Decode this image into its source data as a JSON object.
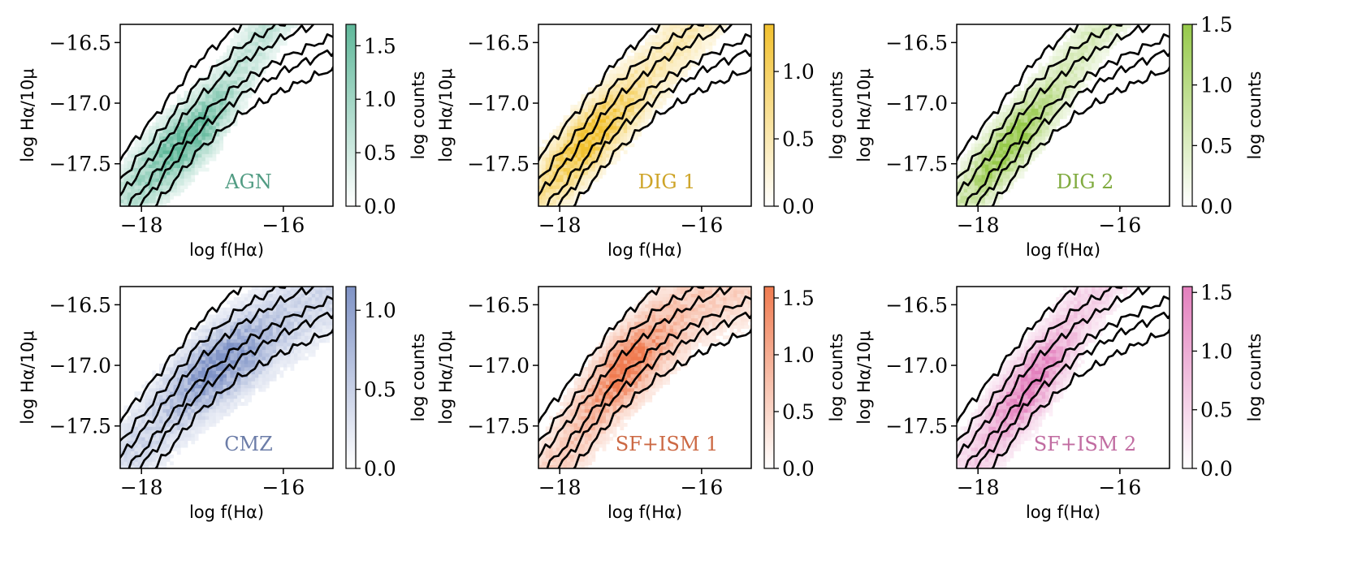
{
  "figure": {
    "xlabel": "log f(Hα)",
    "ylabel": "log Hα/10μ",
    "cbar_label": "log counts",
    "x_ticks": [
      -18,
      -16
    ],
    "y_ticks": [
      -16.5,
      -17.0,
      -17.5
    ],
    "xlim": [
      -18.3,
      -15.3
    ],
    "ylim": [
      -17.85,
      -16.35
    ]
  },
  "chart_data": [
    {
      "type": "heatmap",
      "label": "AGN",
      "color": "#5fb89a",
      "cbar_ticks": [
        0.0,
        0.5,
        1.0,
        1.5
      ],
      "cbar_max": 1.7,
      "xlabel": "log f(Hα)",
      "ylabel": "log Hα/10μ",
      "colorbar_label": "log counts",
      "xlim": [
        -18.3,
        -15.3
      ],
      "ylim": [
        -17.85,
        -16.35
      ],
      "ridge": [
        [
          -18.1,
          -17.75
        ],
        [
          -17.6,
          -17.45
        ],
        [
          -17.0,
          -17.05
        ],
        [
          -16.6,
          -16.7
        ],
        [
          -16.3,
          -16.45
        ]
      ],
      "width": 0.22,
      "peak": [
        -17.4,
        -17.3
      ]
    },
    {
      "type": "heatmap",
      "label": "DIG 1",
      "color": "#f2c12e",
      "cbar_ticks": [
        0.0,
        0.5,
        1.0
      ],
      "cbar_max": 1.35,
      "xlabel": "log f(Hα)",
      "ylabel": "log Hα/10μ",
      "colorbar_label": "log counts",
      "xlim": [
        -18.3,
        -15.3
      ],
      "ylim": [
        -17.85,
        -16.35
      ],
      "ridge": [
        [
          -18.3,
          -17.8
        ],
        [
          -17.8,
          -17.45
        ],
        [
          -17.3,
          -17.1
        ],
        [
          -16.8,
          -16.8
        ],
        [
          -16.4,
          -16.55
        ]
      ],
      "width": 0.22,
      "peak": [
        -17.55,
        -17.3
      ]
    },
    {
      "type": "heatmap",
      "label": "DIG 2",
      "color": "#96c94a",
      "cbar_ticks": [
        0.0,
        0.5,
        1.0,
        1.5
      ],
      "cbar_max": 1.5,
      "xlabel": "log f(Hα)",
      "ylabel": "log Hα/10μ",
      "colorbar_label": "log counts",
      "xlim": [
        -18.3,
        -15.3
      ],
      "ylim": [
        -17.85,
        -16.35
      ],
      "ridge": [
        [
          -18.1,
          -17.75
        ],
        [
          -17.7,
          -17.45
        ],
        [
          -17.3,
          -17.15
        ],
        [
          -16.9,
          -16.85
        ]
      ],
      "width": 0.2,
      "peak": [
        -17.5,
        -17.35
      ]
    },
    {
      "type": "heatmap",
      "label": "CMZ",
      "color": "#7f93c6",
      "cbar_ticks": [
        0.0,
        0.5,
        1.0
      ],
      "cbar_max": 1.15,
      "xlabel": "log f(Hα)",
      "ylabel": "log Hα/10μ",
      "colorbar_label": "log counts",
      "xlim": [
        -18.3,
        -15.3
      ],
      "ylim": [
        -17.85,
        -16.35
      ],
      "ridge": [
        [
          -17.6,
          -17.4
        ],
        [
          -17.1,
          -17.1
        ],
        [
          -16.6,
          -16.85
        ],
        [
          -16.0,
          -16.6
        ],
        [
          -15.5,
          -16.45
        ]
      ],
      "width": 0.26,
      "peak": [
        -16.9,
        -17.0
      ]
    },
    {
      "type": "heatmap",
      "label": "SF+ISM 1",
      "color": "#f07b50",
      "cbar_ticks": [
        0.0,
        0.5,
        1.0,
        1.5
      ],
      "cbar_max": 1.6,
      "xlabel": "log f(Hα)",
      "ylabel": "log Hα/10μ",
      "colorbar_label": "log counts",
      "xlim": [
        -18.3,
        -15.3
      ],
      "ylim": [
        -17.85,
        -16.35
      ],
      "ridge": [
        [
          -17.6,
          -17.45
        ],
        [
          -17.1,
          -17.05
        ],
        [
          -16.6,
          -16.7
        ],
        [
          -16.1,
          -16.45
        ],
        [
          -15.6,
          -16.35
        ]
      ],
      "width": 0.26,
      "peak": [
        -17.1,
        -17.0
      ]
    },
    {
      "type": "heatmap",
      "label": "SF+ISM 2",
      "color": "#e37fbd",
      "cbar_ticks": [
        0.0,
        0.5,
        1.0,
        1.5
      ],
      "cbar_max": 1.55,
      "xlabel": "log f(Hα)",
      "ylabel": "log Hα/10μ",
      "colorbar_label": "log counts",
      "xlim": [
        -18.3,
        -15.3
      ],
      "ylim": [
        -17.85,
        -16.35
      ],
      "ridge": [
        [
          -17.8,
          -17.6
        ],
        [
          -17.3,
          -17.2
        ],
        [
          -16.9,
          -16.85
        ],
        [
          -16.5,
          -16.5
        ],
        [
          -16.3,
          -16.35
        ]
      ],
      "width": 0.24,
      "peak": [
        -17.35,
        -17.15
      ]
    }
  ]
}
